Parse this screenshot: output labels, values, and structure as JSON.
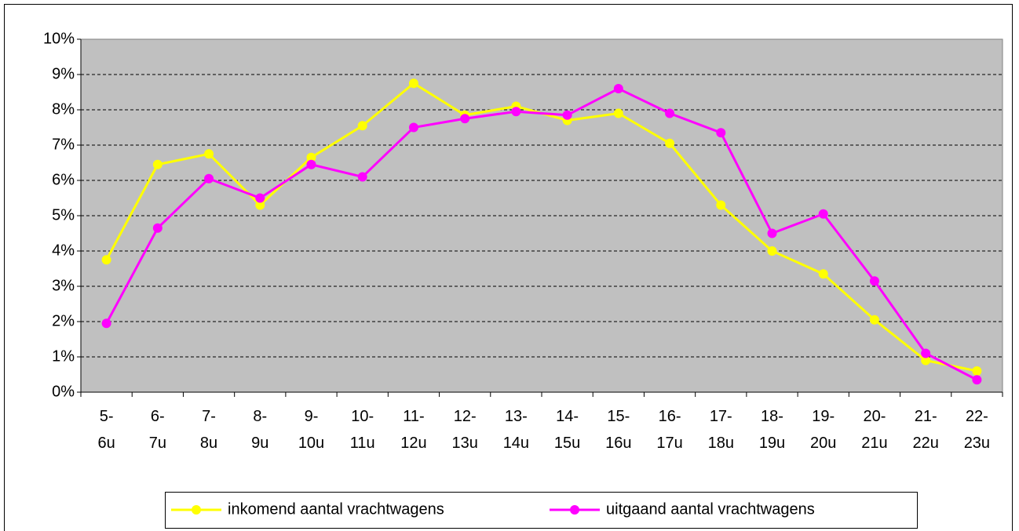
{
  "chart_data": {
    "type": "line",
    "categories": [
      "5-\n6u",
      "6-\n7u",
      "7-\n8u",
      "8-\n9u",
      "9-\n10u",
      "10-\n11u",
      "11-\n12u",
      "12-\n13u",
      "13-\n14u",
      "14-\n15u",
      "15-\n16u",
      "16-\n17u",
      "17-\n18u",
      "18-\n19u",
      "19-\n20u",
      "20-\n21u",
      "21-\n22u",
      "22-\n23u"
    ],
    "series": [
      {
        "name": "inkomend aantal vrachtwagens",
        "color": "#ffff00",
        "values": [
          3.75,
          6.45,
          6.75,
          5.3,
          6.65,
          7.55,
          8.75,
          7.85,
          8.1,
          7.7,
          7.9,
          7.05,
          5.3,
          4.0,
          3.35,
          2.05,
          0.9,
          0.6
        ]
      },
      {
        "name": "uitgaand aantal vrachtwagens",
        "color": "#ff00ff",
        "values": [
          1.95,
          4.65,
          6.05,
          5.5,
          6.45,
          6.1,
          7.5,
          7.75,
          7.95,
          7.85,
          8.6,
          7.9,
          7.35,
          4.5,
          5.05,
          3.15,
          1.1,
          0.35
        ]
      }
    ],
    "ylim": [
      0,
      10
    ],
    "yticks": [
      {
        "value": 0,
        "label": "0%"
      },
      {
        "value": 1,
        "label": "1%"
      },
      {
        "value": 2,
        "label": "2%"
      },
      {
        "value": 3,
        "label": "3%"
      },
      {
        "value": 4,
        "label": "4%"
      },
      {
        "value": 5,
        "label": "5%"
      },
      {
        "value": 6,
        "label": "6%"
      },
      {
        "value": 7,
        "label": "7%"
      },
      {
        "value": 8,
        "label": "8%"
      },
      {
        "value": 9,
        "label": "9%"
      },
      {
        "value": 10,
        "label": "10%"
      }
    ],
    "grid": true,
    "legend": "bottom",
    "background": "#c0c0c0"
  }
}
